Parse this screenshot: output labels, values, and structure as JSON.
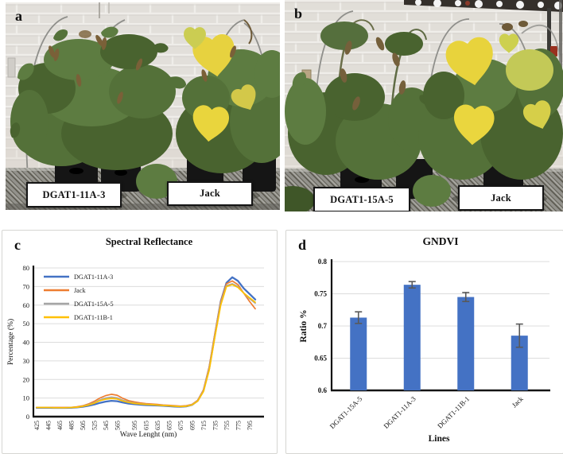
{
  "panels": {
    "a": {
      "letter": "a",
      "left_label": "DGAT1-11A-3",
      "right_label": "Jack"
    },
    "b": {
      "letter": "b",
      "left_label": "DGAT1-15A-5",
      "right_label": "Jack"
    },
    "c": {
      "letter": "c"
    },
    "d": {
      "letter": "d"
    }
  },
  "chart_data": [
    {
      "type": "line",
      "title": "Spectral Reflectance",
      "xlabel": "Wave Lenght (nm)",
      "ylabel": "Percentage (%)",
      "ylim": [
        0,
        80
      ],
      "yticks": [
        0,
        10,
        20,
        30,
        40,
        50,
        60,
        70,
        80
      ],
      "xticks": [
        425,
        445,
        465,
        485,
        505,
        525,
        545,
        565,
        595,
        615,
        635,
        655,
        675,
        695,
        715,
        735,
        755,
        775,
        795
      ],
      "grid": true,
      "legend_position": "top-left",
      "x": [
        425,
        435,
        445,
        455,
        465,
        475,
        485,
        495,
        505,
        515,
        525,
        535,
        545,
        555,
        565,
        575,
        585,
        595,
        605,
        615,
        625,
        635,
        645,
        655,
        665,
        675,
        685,
        695,
        705,
        715,
        725,
        735,
        745,
        755,
        765,
        775,
        785,
        795,
        805
      ],
      "series": [
        {
          "name": "DGAT1-11A-3",
          "color": "#4472C4",
          "values": [
            4.8,
            4.8,
            4.8,
            4.7,
            4.7,
            4.7,
            4.8,
            5.0,
            5.3,
            5.8,
            6.5,
            7.4,
            8.1,
            8.5,
            8.3,
            7.6,
            7.0,
            6.7,
            6.4,
            6.2,
            6.1,
            6.0,
            5.8,
            5.6,
            5.4,
            5.3,
            5.5,
            6.3,
            8.5,
            14,
            26,
            44,
            62,
            72,
            75,
            73,
            69,
            66,
            63
          ]
        },
        {
          "name": "Jack",
          "color": "#ED7D31",
          "values": [
            5.0,
            5.0,
            5.0,
            4.9,
            4.9,
            4.9,
            5.0,
            5.3,
            5.8,
            6.8,
            8.2,
            10.0,
            11.3,
            12.0,
            11.5,
            9.8,
            8.6,
            7.9,
            7.4,
            7.0,
            6.8,
            6.6,
            6.3,
            6.1,
            5.9,
            5.7,
            5.9,
            6.6,
            8.8,
            14.5,
            27,
            45,
            62,
            71.5,
            73,
            71,
            66.5,
            62,
            58
          ]
        },
        {
          "name": "DGAT1-15A-5",
          "color": "#A5A5A5",
          "values": [
            4.9,
            4.9,
            4.9,
            4.8,
            4.8,
            4.8,
            4.9,
            5.1,
            5.6,
            6.4,
            7.5,
            9.0,
            10.0,
            10.5,
            10.1,
            8.8,
            7.9,
            7.3,
            6.9,
            6.7,
            6.5,
            6.3,
            6.1,
            5.9,
            5.7,
            5.5,
            5.7,
            6.4,
            8.5,
            14,
            26,
            44,
            61,
            70.5,
            71.5,
            70,
            66.5,
            63.5,
            61
          ]
        },
        {
          "name": "DGAT1-11B-1",
          "color": "#FFC000",
          "values": [
            4.9,
            4.9,
            4.9,
            4.8,
            4.8,
            4.8,
            4.9,
            5.1,
            5.5,
            6.2,
            7.2,
            8.6,
            9.4,
            9.8,
            9.5,
            8.4,
            7.6,
            7.1,
            6.8,
            6.6,
            6.4,
            6.2,
            6.0,
            5.8,
            5.6,
            5.4,
            5.6,
            6.3,
            8.3,
            13.5,
            25,
            43,
            60,
            70,
            71,
            69.5,
            66.5,
            64,
            61.5
          ]
        }
      ]
    },
    {
      "type": "bar",
      "title": "GNDVI",
      "xlabel": "Lines",
      "ylabel": "Ratio %",
      "ylim": [
        0.6,
        0.8
      ],
      "yticks": [
        0.6,
        0.65,
        0.7,
        0.75,
        0.8
      ],
      "grid": true,
      "categories": [
        "DGAT1-15A-5",
        "DGAT1-11A-3",
        "DGAT1-11B-1",
        "Jack"
      ],
      "values": [
        0.713,
        0.764,
        0.745,
        0.685
      ],
      "errors": [
        0.009,
        0.005,
        0.007,
        0.018
      ],
      "bar_color": "#4472C4",
      "error_color": "#595959"
    }
  ]
}
